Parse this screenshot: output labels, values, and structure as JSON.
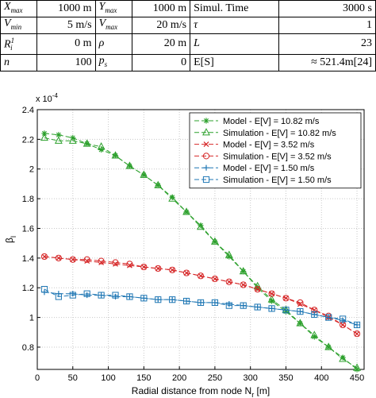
{
  "params_table": {
    "rows": [
      [
        {
          "t": "X",
          "s": "max"
        },
        "1000 m",
        {
          "t": "Y",
          "s": "max"
        },
        "1000 m",
        "Simul. Time",
        "3000 s"
      ],
      [
        {
          "t": "V",
          "s": "min"
        },
        "5 m/s",
        {
          "t": "V",
          "s": "max"
        },
        "20 m/s",
        "τ",
        "1"
      ],
      [
        {
          "t": "R",
          "s": "i",
          "sup": "1"
        },
        "0 m",
        "ρ",
        "20 m",
        "L",
        "23"
      ],
      [
        "n",
        "100",
        {
          "t": "p",
          "s": "s"
        },
        "0",
        "E[S]",
        "≈ 521.4m[24]"
      ]
    ]
  },
  "chart_data": {
    "type": "line",
    "xlabel": "Radial distance from node N",
    "xlabel_sub": "r",
    "xlabel_unit": " [m]",
    "ylabel": "β",
    "ylabel_sub": "l",
    "y_multiplier": "x 10",
    "y_multiplier_exp": "-4",
    "xlim": [
      0,
      460
    ],
    "ylim": [
      0.65,
      2.4
    ],
    "x_ticks": [
      "0",
      "50",
      "100",
      "150",
      "200",
      "250",
      "300",
      "350",
      "400",
      "450"
    ],
    "y_ticks": [
      "0.8",
      "1",
      "1.2",
      "1.4",
      "1.6",
      "1.8",
      "2",
      "2.2",
      "2.4"
    ],
    "grid": true,
    "legend_position": "top-right",
    "series": [
      {
        "name": "Model - E[V] = 10.82 m/s",
        "color": "#2ca02c",
        "marker": "star",
        "dash": "6,3",
        "x": [
          10,
          30,
          50,
          70,
          90,
          110,
          130,
          150,
          170,
          190,
          210,
          230,
          250,
          270,
          290,
          310,
          330,
          350,
          370,
          390,
          410,
          430,
          450
        ],
        "y": [
          2.24,
          2.23,
          2.21,
          2.17,
          2.13,
          2.09,
          2.02,
          1.96,
          1.89,
          1.81,
          1.71,
          1.62,
          1.51,
          1.41,
          1.31,
          1.2,
          1.11,
          1.04,
          0.96,
          0.87,
          0.8,
          0.73,
          0.65
        ]
      },
      {
        "name": "Simulation - E[V] = 10.82 m/s",
        "color": "#2ca02c",
        "marker": "triangle",
        "dash": "6,3",
        "x": [
          10,
          30,
          50,
          70,
          90,
          110,
          130,
          150,
          170,
          190,
          210,
          230,
          250,
          270,
          290,
          310,
          330,
          350,
          370,
          390,
          410,
          430,
          450
        ],
        "y": [
          2.21,
          2.19,
          2.19,
          2.17,
          2.15,
          2.09,
          2.02,
          1.96,
          1.89,
          1.8,
          1.71,
          1.61,
          1.51,
          1.42,
          1.31,
          1.21,
          1.12,
          1.05,
          0.96,
          0.88,
          0.8,
          0.72,
          0.66
        ]
      },
      {
        "name": "Model - E[V] = 3.52 m/s",
        "color": "#d62728",
        "marker": "x",
        "dash": "6,3",
        "x": [
          10,
          30,
          50,
          70,
          90,
          110,
          130,
          150,
          170,
          190,
          210,
          230,
          250,
          270,
          290,
          310,
          330,
          350,
          370,
          390,
          410,
          430,
          450
        ],
        "y": [
          1.41,
          1.4,
          1.39,
          1.38,
          1.37,
          1.36,
          1.35,
          1.34,
          1.33,
          1.32,
          1.3,
          1.28,
          1.26,
          1.24,
          1.22,
          1.19,
          1.16,
          1.13,
          1.09,
          1.05,
          1.0,
          0.95,
          0.89
        ]
      },
      {
        "name": "Simulation - E[V] = 3.52 m/s",
        "color": "#d62728",
        "marker": "circle",
        "dash": "6,3",
        "x": [
          10,
          30,
          50,
          70,
          90,
          110,
          130,
          150,
          170,
          190,
          210,
          230,
          250,
          270,
          290,
          310,
          330,
          350,
          370,
          390,
          410,
          430,
          450
        ],
        "y": [
          1.41,
          1.4,
          1.39,
          1.39,
          1.38,
          1.37,
          1.36,
          1.34,
          1.33,
          1.32,
          1.3,
          1.28,
          1.26,
          1.24,
          1.22,
          1.19,
          1.16,
          1.13,
          1.1,
          1.05,
          1.01,
          0.95,
          0.89
        ]
      },
      {
        "name": "Model - E[V] = 1.50 m/s",
        "color": "#1f77b4",
        "marker": "plus",
        "dash": "6,3",
        "x": [
          10,
          30,
          50,
          70,
          90,
          110,
          130,
          150,
          170,
          190,
          210,
          230,
          250,
          270,
          290,
          310,
          330,
          350,
          370,
          390,
          410,
          430,
          450
        ],
        "y": [
          1.17,
          1.16,
          1.16,
          1.15,
          1.15,
          1.14,
          1.14,
          1.13,
          1.12,
          1.12,
          1.11,
          1.1,
          1.1,
          1.09,
          1.08,
          1.07,
          1.06,
          1.05,
          1.04,
          1.02,
          1.0,
          0.98,
          0.95
        ]
      },
      {
        "name": "Simulation - E[V] = 1.50 m/s",
        "color": "#1f77b4",
        "marker": "square",
        "dash": "6,3",
        "x": [
          10,
          30,
          50,
          70,
          90,
          110,
          130,
          150,
          170,
          190,
          210,
          230,
          250,
          270,
          290,
          310,
          330,
          350,
          370,
          390,
          410,
          430,
          450
        ],
        "y": [
          1.19,
          1.14,
          1.15,
          1.16,
          1.15,
          1.15,
          1.14,
          1.13,
          1.12,
          1.12,
          1.11,
          1.1,
          1.1,
          1.08,
          1.08,
          1.07,
          1.06,
          1.05,
          1.04,
          1.02,
          1.0,
          0.99,
          0.95
        ]
      }
    ]
  }
}
